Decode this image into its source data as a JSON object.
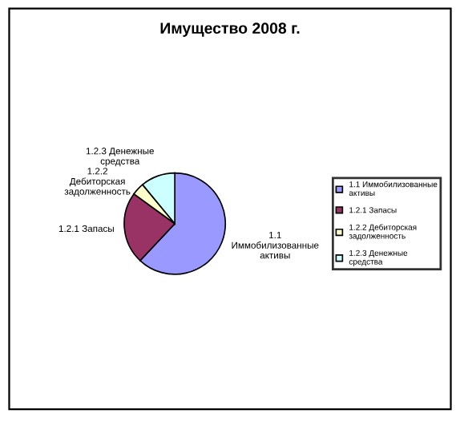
{
  "chart_data": {
    "type": "pie",
    "title": "Имущество 2008 г.",
    "categories": [
      "1.1 Иммобилизованные активы",
      "1.2.1 Запасы",
      "1.2.2 Дебиторская задолженность",
      "1.2.3 Денежные средства"
    ],
    "values": [
      62,
      23,
      4,
      11
    ],
    "colors": [
      "#9999ff",
      "#993366",
      "#ffffcc",
      "#ccffff"
    ],
    "legend": "right"
  }
}
